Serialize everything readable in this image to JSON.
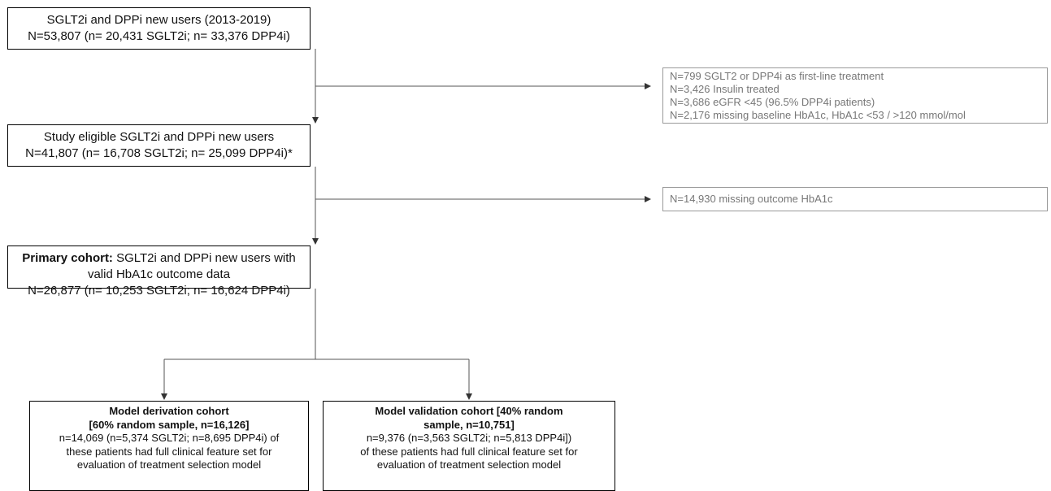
{
  "nodes": [
    {
      "lines": [
        "SGLT2i and DPPi new users (2013-2019)",
        "N=53,807 (n= 20,431 SGLT2i; n= 33,376 DPP4i)"
      ]
    },
    {
      "lines": [
        "Study eligible SGLT2i and DPPi new users",
        "N=41,807 (n= 16,708 SGLT2i; n= 25,099 DPP4i)*"
      ]
    },
    {
      "bold": "Primary cohort:",
      "lines": [
        "SGLT2i and DPPi new users with valid HbA1c outcome data",
        "N=26,877 (n= 10,253 SGLT2i; n= 16,624 DPP4i)"
      ]
    },
    {
      "bold_lines": [
        "Model derivation cohort",
        "[60% random sample, n=16,126]"
      ],
      "lines": [
        "n=14,069 (n=5,374 SGLT2i; n=8,695 DPP4i) of",
        "these patients had full clinical feature set for",
        "evaluation of treatment selection model"
      ]
    },
    {
      "bold_lines": [
        "Model validation cohort [40% random",
        "sample, n=10,751]"
      ],
      "lines": [
        "n=9,376 (n=3,563 SGLT2i; n=5,813 DPP4i])",
        "of these patients had full clinical feature set for",
        "evaluation of treatment selection model"
      ]
    }
  ],
  "exclusions": [
    {
      "lines": [
        "N=799 SGLT2 or DPP4i as first-line treatment",
        "N=3,426 Insulin treated",
        "N=3,686 eGFR <45 (96.5% DPP4i patients)",
        "N=2,176 missing baseline HbA1c, HbA1c <53 / >120 mmol/mol"
      ]
    },
    {
      "lines": [
        "N=14,930 missing outcome HbA1c"
      ]
    }
  ]
}
